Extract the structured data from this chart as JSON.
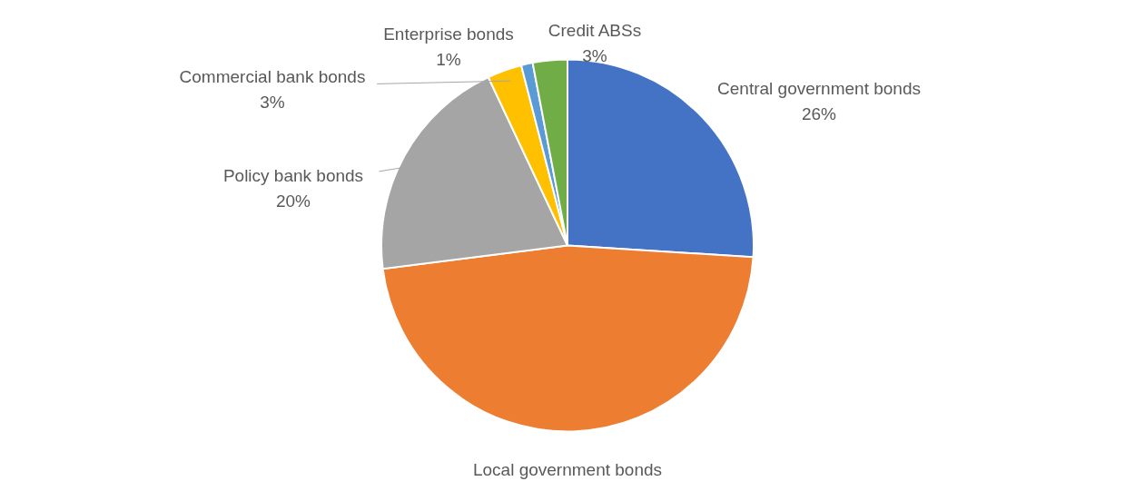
{
  "chart_data": {
    "type": "pie",
    "categories": [
      "Central government bonds",
      "Local government bonds",
      "Policy bank bonds",
      "Commercial bank bonds",
      "Enterprise bonds",
      "Credit ABSs"
    ],
    "values": [
      26,
      47,
      20,
      3,
      1,
      3
    ],
    "value_labels": [
      "26%",
      null,
      "20%",
      "3%",
      "1%",
      "3%"
    ],
    "colors": [
      "#4472c4",
      "#ed7d31",
      "#a5a5a5",
      "#ffc000",
      "#5b9bd5",
      "#70ad47"
    ]
  }
}
